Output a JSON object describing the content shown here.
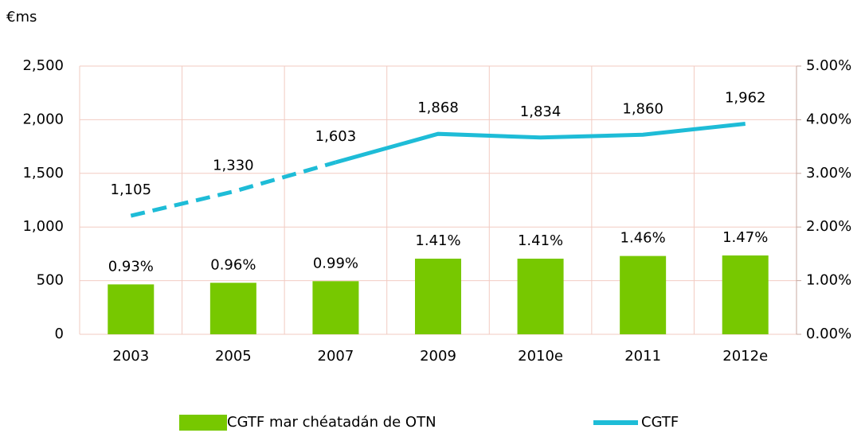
{
  "chart_data": {
    "type": "bar_line",
    "y_axis_label": "€ms",
    "categories": [
      "2003",
      "2005",
      "2007",
      "2009",
      "2010e",
      "2011",
      "2012e"
    ],
    "series": [
      {
        "name": "CGTF mar chéatadán de OTN",
        "type": "bar",
        "axis": "y2",
        "color": "#77c800",
        "values": [
          0.93,
          0.96,
          0.99,
          1.41,
          1.41,
          1.46,
          1.47
        ],
        "value_labels": [
          "0.93%",
          "0.96%",
          "0.99%",
          "1.41%",
          "1.41%",
          "1.46%",
          "1.47%"
        ]
      },
      {
        "name": "CGTF",
        "type": "line",
        "axis": "y",
        "color": "#1ebcd7",
        "dashed_until_index": 2,
        "values": [
          1105,
          1330,
          1603,
          1868,
          1834,
          1860,
          1962
        ],
        "value_labels": [
          "1,105",
          "1,330",
          "1,603",
          "1,868",
          "1,834",
          "1,860",
          "1,962"
        ]
      }
    ],
    "ylim": [
      0,
      2500
    ],
    "yticks": [
      0,
      500,
      {
        "value": 1000,
        "label": "1,000"
      },
      {
        "value": 1500,
        "label": "1,500"
      },
      {
        "value": 2000,
        "label": "2,000"
      },
      {
        "value": 2500,
        "label": "2,500"
      }
    ],
    "y2lim": [
      0,
      5
    ],
    "y2ticks": [
      {
        "value": 0,
        "label": "0.00%"
      },
      {
        "value": 1,
        "label": "1.00%"
      },
      {
        "value": 2,
        "label": "2.00%"
      },
      {
        "value": 3,
        "label": "3.00%"
      },
      {
        "value": 4,
        "label": "4.00%"
      },
      {
        "value": 5,
        "label": "5.00%"
      }
    ],
    "grid": true
  }
}
